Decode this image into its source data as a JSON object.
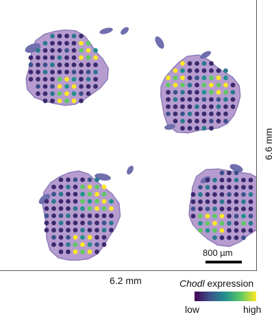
{
  "figure": {
    "height_label": "6.6 mm",
    "width_label": "6.2 mm",
    "scale_bar_label": "800 µm",
    "legend": {
      "gene": "Chodl",
      "suffix": " expression",
      "low_label": "low",
      "high_label": "high",
      "colormap": [
        "#440154",
        "#3b528b",
        "#21918c",
        "#5ec962",
        "#fde725"
      ]
    },
    "colors": {
      "tissue": "#b79ccf",
      "tissue_dark": "#8c7cb8",
      "fragment": "#6f6fae",
      "spot_low": "#3a2a6e",
      "spot_mid": "#2a788e",
      "spot_high": "#fde725"
    }
  }
}
